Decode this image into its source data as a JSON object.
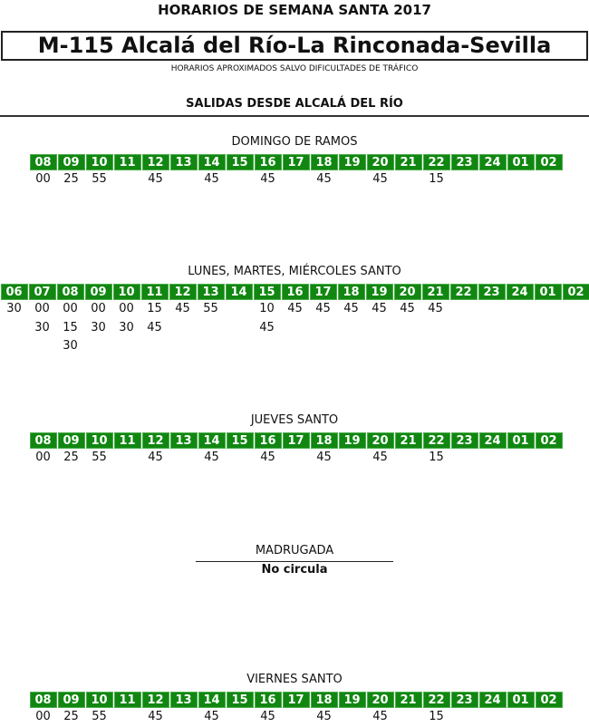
{
  "header": {
    "title": "HORARIOS DE SEMANA SANTA 2017",
    "route": "M-115 Alcalá del Río-La Rinconada-Sevilla",
    "note": "HORARIOS APROXIMADOS SALVO DIFICULTADES DE TRÁFICO",
    "section": "SALIDAS DESDE ALCALÁ DEL RÍO"
  },
  "colors": {
    "hour_bg": "#118711",
    "hour_text": "#ffffff"
  },
  "schedules": [
    {
      "label": "DOMINGO DE RAMOS",
      "columns": [
        [
          "08",
          [
            "00"
          ]
        ],
        [
          "09",
          [
            "25"
          ]
        ],
        [
          "10",
          [
            "55"
          ]
        ],
        [
          "11",
          []
        ],
        [
          "12",
          [
            "45"
          ]
        ],
        [
          "13",
          []
        ],
        [
          "14",
          [
            "45"
          ]
        ],
        [
          "15",
          []
        ],
        [
          "16",
          [
            "45"
          ]
        ],
        [
          "17",
          []
        ],
        [
          "18",
          [
            "45"
          ]
        ],
        [
          "19",
          []
        ],
        [
          "20",
          [
            "45"
          ]
        ],
        [
          "21",
          []
        ],
        [
          "22",
          [
            "15"
          ]
        ],
        [
          "23",
          []
        ],
        [
          "24",
          []
        ],
        [
          "01",
          []
        ],
        [
          "02",
          []
        ]
      ]
    },
    {
      "label": "LUNES, MARTES, MIÉRCOLES SANTO",
      "columns": [
        [
          "06",
          [
            "30"
          ]
        ],
        [
          "07",
          [
            "00",
            "30"
          ]
        ],
        [
          "08",
          [
            "00",
            "15",
            "30"
          ]
        ],
        [
          "09",
          [
            "00",
            "30"
          ]
        ],
        [
          "10",
          [
            "00",
            "30"
          ]
        ],
        [
          "11",
          [
            "15",
            "45"
          ]
        ],
        [
          "12",
          [
            "45"
          ]
        ],
        [
          "13",
          [
            "55"
          ]
        ],
        [
          "14",
          []
        ],
        [
          "15",
          [
            "10",
            "45"
          ]
        ],
        [
          "16",
          [
            "45"
          ]
        ],
        [
          "17",
          [
            "45"
          ]
        ],
        [
          "18",
          [
            "45"
          ]
        ],
        [
          "19",
          [
            "45"
          ]
        ],
        [
          "20",
          [
            "45"
          ]
        ],
        [
          "21",
          [
            "45"
          ]
        ],
        [
          "22",
          []
        ],
        [
          "23",
          []
        ],
        [
          "24",
          []
        ],
        [
          "01",
          []
        ],
        [
          "02",
          []
        ]
      ]
    },
    {
      "label": "JUEVES SANTO",
      "columns": [
        [
          "08",
          [
            "00"
          ]
        ],
        [
          "09",
          [
            "25"
          ]
        ],
        [
          "10",
          [
            "55"
          ]
        ],
        [
          "11",
          []
        ],
        [
          "12",
          [
            "45"
          ]
        ],
        [
          "13",
          []
        ],
        [
          "14",
          [
            "45"
          ]
        ],
        [
          "15",
          []
        ],
        [
          "16",
          [
            "45"
          ]
        ],
        [
          "17",
          []
        ],
        [
          "18",
          [
            "45"
          ]
        ],
        [
          "19",
          []
        ],
        [
          "20",
          [
            "45"
          ]
        ],
        [
          "21",
          []
        ],
        [
          "22",
          [
            "15"
          ]
        ],
        [
          "23",
          []
        ],
        [
          "24",
          []
        ],
        [
          "01",
          []
        ],
        [
          "02",
          []
        ]
      ]
    },
    {
      "label": "VIERNES SANTO",
      "columns": [
        [
          "08",
          [
            "00"
          ]
        ],
        [
          "09",
          [
            "25"
          ]
        ],
        [
          "10",
          [
            "55"
          ]
        ],
        [
          "11",
          []
        ],
        [
          "12",
          [
            "45"
          ]
        ],
        [
          "13",
          []
        ],
        [
          "14",
          [
            "45"
          ]
        ],
        [
          "15",
          []
        ],
        [
          "16",
          [
            "45"
          ]
        ],
        [
          "17",
          []
        ],
        [
          "18",
          [
            "45"
          ]
        ],
        [
          "19",
          []
        ],
        [
          "20",
          [
            "45"
          ]
        ],
        [
          "21",
          []
        ],
        [
          "22",
          [
            "15"
          ]
        ],
        [
          "23",
          []
        ],
        [
          "24",
          []
        ],
        [
          "01",
          []
        ],
        [
          "02",
          []
        ]
      ]
    }
  ],
  "madrugada": {
    "label": "MADRUGADA",
    "status": "No circula"
  }
}
